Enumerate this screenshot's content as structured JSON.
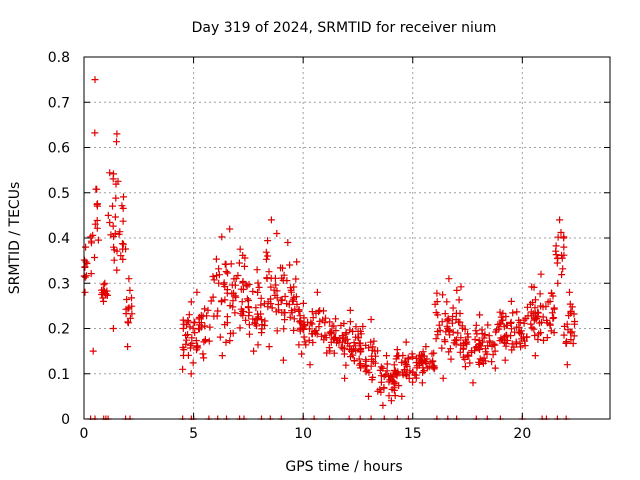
{
  "chart_data": {
    "type": "scatter",
    "title": "Day 319 of 2024, SRMTID for receiver nium",
    "xlabel": "GPS time / hours",
    "ylabel": "SRMTID / TECUs",
    "xlim": [
      0,
      24
    ],
    "ylim": [
      0,
      0.8
    ],
    "x_ticks": [
      0,
      5,
      10,
      15,
      20
    ],
    "y_ticks": [
      0,
      0.1,
      0.2,
      0.3,
      0.4,
      0.5,
      0.6,
      0.7,
      0.8
    ],
    "x_tick_labels": [
      "0",
      "5",
      "10",
      "15",
      "20"
    ],
    "y_tick_labels": [
      "0",
      "0.1",
      "0.2",
      "0.3",
      "0.4",
      "0.5",
      "0.6",
      "0.7",
      "0.8"
    ],
    "grid": true,
    "marker": "plus",
    "color": "#e00000",
    "series": [
      {
        "name": "SRMTID",
        "clusters": [
          {
            "x": [
              0.0,
              0.15
            ],
            "y": [
              0.28,
              0.38
            ]
          },
          {
            "x": [
              0.3,
              0.7
            ],
            "y": [
              0.15,
              0.75
            ]
          },
          {
            "x": [
              0.8,
              1.1
            ],
            "y": [
              0.26,
              0.3
            ]
          },
          {
            "x": [
              1.1,
              1.9
            ],
            "y": [
              0.2,
              0.63
            ]
          },
          {
            "x": [
              1.9,
              2.2
            ],
            "y": [
              0.16,
              0.31
            ]
          },
          {
            "x": [
              4.5,
              5.8
            ],
            "y": [
              0.1,
              0.28
            ]
          },
          {
            "x": [
              5.8,
              7.5
            ],
            "y": [
              0.14,
              0.42
            ]
          },
          {
            "x": [
              7.5,
              8.3
            ],
            "y": [
              0.15,
              0.33
            ]
          },
          {
            "x": [
              8.3,
              8.8
            ],
            "y": [
              0.16,
              0.44
            ]
          },
          {
            "x": [
              8.8,
              9.8
            ],
            "y": [
              0.13,
              0.39
            ]
          },
          {
            "x": [
              9.8,
              11.5
            ],
            "y": [
              0.12,
              0.28
            ]
          },
          {
            "x": [
              11.5,
              12.8
            ],
            "y": [
              0.09,
              0.24
            ]
          },
          {
            "x": [
              12.8,
              13.4
            ],
            "y": [
              0.05,
              0.22
            ]
          },
          {
            "x": [
              13.4,
              14.2
            ],
            "y": [
              0.03,
              0.14
            ]
          },
          {
            "x": [
              14.2,
              15.2
            ],
            "y": [
              0.05,
              0.17
            ]
          },
          {
            "x": [
              15.2,
              16.0
            ],
            "y": [
              0.08,
              0.16
            ]
          },
          {
            "x": [
              16.0,
              17.3
            ],
            "y": [
              0.09,
              0.31
            ]
          },
          {
            "x": [
              17.3,
              18.8
            ],
            "y": [
              0.08,
              0.23
            ]
          },
          {
            "x": [
              18.8,
              20.2
            ],
            "y": [
              0.13,
              0.26
            ]
          },
          {
            "x": [
              20.2,
              21.5
            ],
            "y": [
              0.14,
              0.32
            ]
          },
          {
            "x": [
              21.5,
              21.9
            ],
            "y": [
              0.3,
              0.44
            ]
          },
          {
            "x": [
              21.9,
              22.4
            ],
            "y": [
              0.12,
              0.28
            ]
          }
        ],
        "baseline_x": [
          0.3,
          0.5,
          0.9,
          1.0,
          1.1,
          1.9,
          2.1,
          4.5,
          4.9,
          5.0,
          5.7,
          6.1,
          6.5,
          7.1,
          7.3,
          8.1,
          8.5,
          9.0,
          10.0,
          10.5,
          11.2,
          12.1,
          12.6,
          13.1,
          13.7,
          14.3,
          14.8,
          16.1,
          16.6,
          17.0,
          17.9,
          18.4,
          19.0,
          20.0,
          20.9,
          21.1,
          21.6,
          22.0
        ]
      }
    ]
  }
}
